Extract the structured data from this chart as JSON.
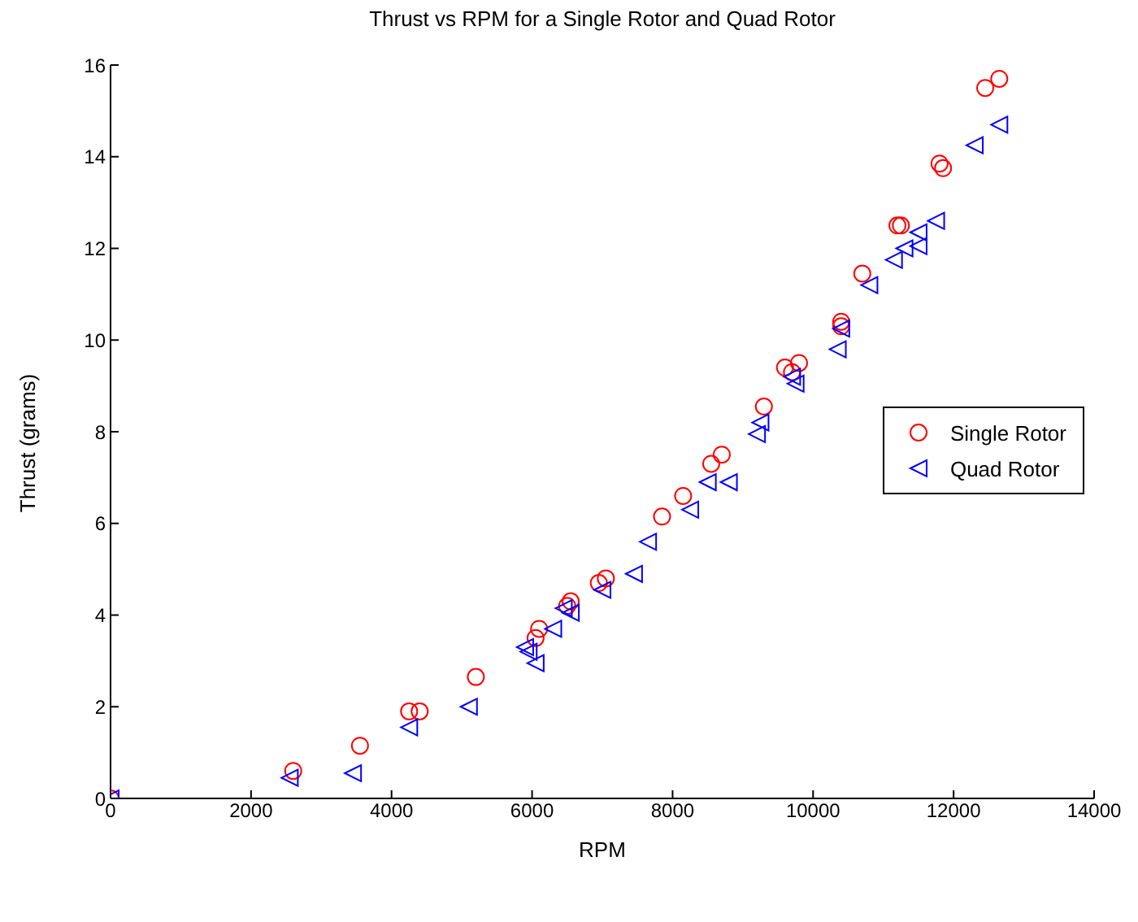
{
  "chart_data": {
    "type": "scatter",
    "title": "Thrust vs RPM for a Single Rotor and Quad Rotor",
    "xlabel": "RPM",
    "ylabel": "Thrust (grams)",
    "xlim": [
      0,
      14000
    ],
    "xticks": [
      0,
      2000,
      4000,
      6000,
      8000,
      10000,
      12000,
      14000
    ],
    "ylim": [
      0,
      16
    ],
    "yticks": [
      0,
      2,
      4,
      6,
      8,
      10,
      12,
      14,
      16
    ],
    "grid": false,
    "legend": "right",
    "series": [
      {
        "name": "Single Rotor",
        "color": "#ff0000",
        "marker": "circle",
        "x": [
          0,
          2600,
          3550,
          4250,
          4400,
          5200,
          6050,
          6100,
          6500,
          6550,
          6950,
          7050,
          7850,
          8150,
          8550,
          8700,
          9300,
          9600,
          9700,
          9800,
          10400,
          10400,
          10700,
          11200,
          11250,
          11800,
          11850,
          12450,
          12650
        ],
        "values": [
          0,
          0.6,
          1.15,
          1.9,
          1.9,
          2.65,
          3.5,
          3.7,
          4.2,
          4.3,
          4.7,
          4.8,
          6.15,
          6.6,
          7.3,
          7.5,
          8.55,
          9.4,
          9.3,
          9.5,
          10.4,
          10.3,
          11.45,
          12.5,
          12.5,
          13.85,
          13.75,
          15.5,
          15.7
        ]
      },
      {
        "name": "Quad Rotor",
        "color": "#0000ff",
        "marker": "triangle",
        "x": [
          0,
          2550,
          3450,
          4250,
          5100,
          5900,
          5950,
          6050,
          6300,
          6450,
          6550,
          7000,
          7450,
          7650,
          8250,
          8500,
          8800,
          9200,
          9250,
          9750,
          9700,
          10350,
          10400,
          10800,
          11150,
          11300,
          11500,
          11500,
          11750,
          12300,
          12650
        ],
        "values": [
          0,
          0.45,
          0.55,
          1.55,
          2.0,
          3.3,
          3.2,
          2.95,
          3.7,
          4.15,
          4.05,
          4.55,
          4.9,
          5.6,
          6.3,
          6.9,
          6.9,
          7.95,
          8.2,
          9.05,
          9.2,
          9.8,
          10.25,
          11.2,
          11.75,
          12.0,
          12.05,
          12.35,
          12.6,
          14.25,
          14.7
        ]
      }
    ]
  }
}
